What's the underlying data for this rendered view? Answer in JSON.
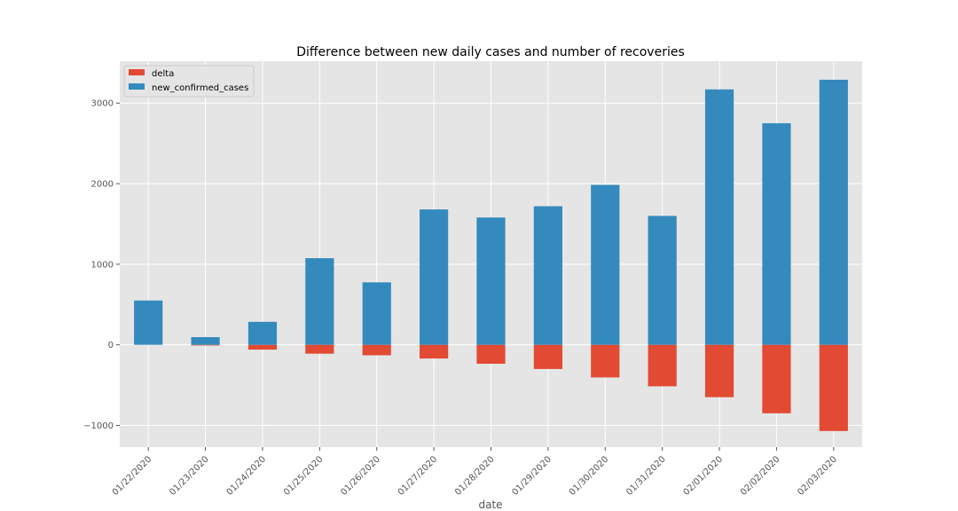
{
  "chart_data": {
    "type": "bar",
    "title": "Difference between new daily cases and number of recoveries",
    "xlabel": "date",
    "ylabel": "",
    "categories": [
      "01/22/2020",
      "01/23/2020",
      "01/24/2020",
      "01/25/2020",
      "01/26/2020",
      "01/27/2020",
      "01/28/2020",
      "01/29/2020",
      "01/30/2020",
      "01/31/2020",
      "02/01/2020",
      "02/02/2020",
      "02/03/2020"
    ],
    "series": [
      {
        "name": "delta",
        "color": "#E24A33",
        "values": [
          0,
          -8,
          -60,
          -110,
          -130,
          -170,
          -235,
          -300,
          -405,
          -515,
          -650,
          -850,
          -1070
        ]
      },
      {
        "name": "new_confirmed_cases",
        "color": "#348ABD",
        "values": [
          550,
          95,
          285,
          1075,
          775,
          1680,
          1580,
          1720,
          1985,
          1600,
          3170,
          2750,
          3290
        ]
      }
    ],
    "ylim": [
      -1270,
      3520
    ],
    "yticks": [
      -1000,
      0,
      1000,
      2000,
      3000
    ],
    "ytick_labels": [
      "−1000",
      "0",
      "1000",
      "2000",
      "3000"
    ],
    "grid": true,
    "legend": "top-left",
    "background": "#E5E5E5",
    "grid_color": "#FFFFFF"
  }
}
